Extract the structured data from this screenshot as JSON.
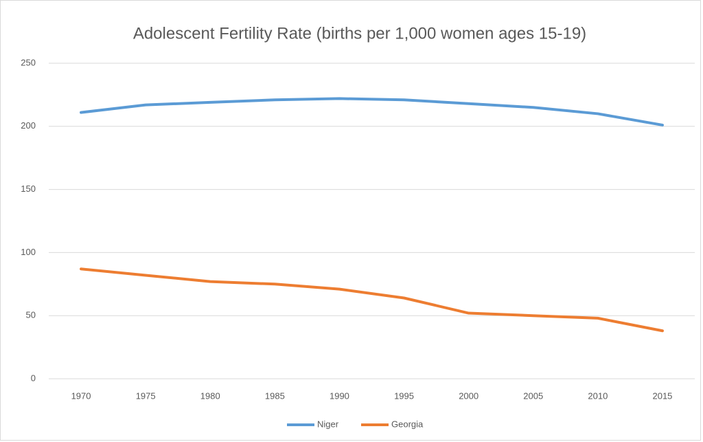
{
  "chart_data": {
    "type": "line",
    "title": "Adolescent Fertility Rate (births per 1,000 women ages 15-19)",
    "categories": [
      "1970",
      "1975",
      "1980",
      "1985",
      "1990",
      "1995",
      "2000",
      "2005",
      "2010",
      "2015"
    ],
    "series": [
      {
        "name": "Niger",
        "color": "#5b9bd5",
        "values": [
          211,
          217,
          219,
          221,
          222,
          221,
          218,
          215,
          210,
          201
        ]
      },
      {
        "name": "Georgia",
        "color": "#ed7d31",
        "values": [
          87,
          82,
          77,
          75,
          71,
          64,
          52,
          50,
          48,
          38
        ]
      }
    ],
    "ylim": [
      0,
      250
    ],
    "yticks": [
      0,
      50,
      100,
      150,
      200,
      250
    ],
    "grid": true,
    "legend": "bottom"
  }
}
